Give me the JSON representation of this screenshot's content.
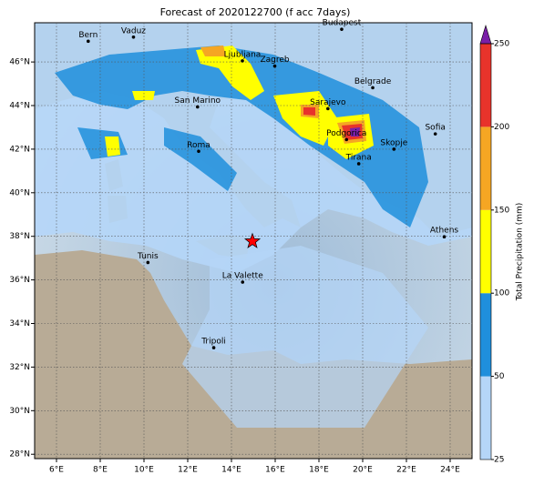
{
  "title": "Forecast of 2020122700 (f acc 7days)",
  "map": {
    "xlim": [
      5,
      25
    ],
    "ylim": [
      27.8,
      47.8
    ],
    "xticks": [
      {
        "value": 6,
        "label": "6°E"
      },
      {
        "value": 8,
        "label": "8°E"
      },
      {
        "value": 10,
        "label": "10°E"
      },
      {
        "value": 12,
        "label": "12°E"
      },
      {
        "value": 14,
        "label": "14°E"
      },
      {
        "value": 16,
        "label": "16°E"
      },
      {
        "value": 18,
        "label": "18°E"
      },
      {
        "value": 20,
        "label": "20°E"
      },
      {
        "value": 22,
        "label": "22°E"
      },
      {
        "value": 24,
        "label": "24°E"
      }
    ],
    "yticks": [
      {
        "value": 28,
        "label": "28°N"
      },
      {
        "value": 30,
        "label": "30°N"
      },
      {
        "value": 32,
        "label": "32°N"
      },
      {
        "value": 34,
        "label": "34°N"
      },
      {
        "value": 36,
        "label": "36°N"
      },
      {
        "value": 38,
        "label": "38°N"
      },
      {
        "value": 40,
        "label": "40°N"
      },
      {
        "value": 42,
        "label": "42°N"
      },
      {
        "value": 44,
        "label": "44°N"
      },
      {
        "value": 46,
        "label": "46°N"
      }
    ],
    "grid": true,
    "cities": [
      {
        "name": "Bern",
        "lon": 7.45,
        "lat": 46.95
      },
      {
        "name": "Vaduz",
        "lon": 9.52,
        "lat": 47.14
      },
      {
        "name": "Budapest",
        "lon": 19.04,
        "lat": 47.5
      },
      {
        "name": "Ljubljana",
        "lon": 14.5,
        "lat": 46.05
      },
      {
        "name": "Zagreb",
        "lon": 15.98,
        "lat": 45.81
      },
      {
        "name": "Belgrade",
        "lon": 20.46,
        "lat": 44.82
      },
      {
        "name": "Sarajevo",
        "lon": 18.41,
        "lat": 43.86
      },
      {
        "name": "San Marino",
        "lon": 12.45,
        "lat": 43.94
      },
      {
        "name": "Roma",
        "lon": 12.5,
        "lat": 41.9
      },
      {
        "name": "Podgorica",
        "lon": 19.26,
        "lat": 42.44
      },
      {
        "name": "Skopje",
        "lon": 21.43,
        "lat": 42.0
      },
      {
        "name": "Sofia",
        "lon": 23.32,
        "lat": 42.7
      },
      {
        "name": "Tirana",
        "lon": 19.82,
        "lat": 41.33
      },
      {
        "name": "Athens",
        "lon": 23.73,
        "lat": 37.98
      },
      {
        "name": "Tunis",
        "lon": 10.18,
        "lat": 36.8
      },
      {
        "name": "La Valette",
        "lon": 14.51,
        "lat": 35.9
      },
      {
        "name": "Tripoli",
        "lon": 13.19,
        "lat": 32.89
      }
    ],
    "event": {
      "lon": 14.96,
      "lat": 37.77,
      "color": "#ff0000"
    }
  },
  "colorbar": {
    "label": "Total Precipitation (mm)",
    "ticks": [
      25,
      50,
      100,
      150,
      200,
      250
    ],
    "colors": [
      "#b5d6f8",
      "#1f8fdc",
      "#ffff00",
      "#f5a623",
      "#e8332b"
    ],
    "extend_color": "#7a1fa8"
  }
}
